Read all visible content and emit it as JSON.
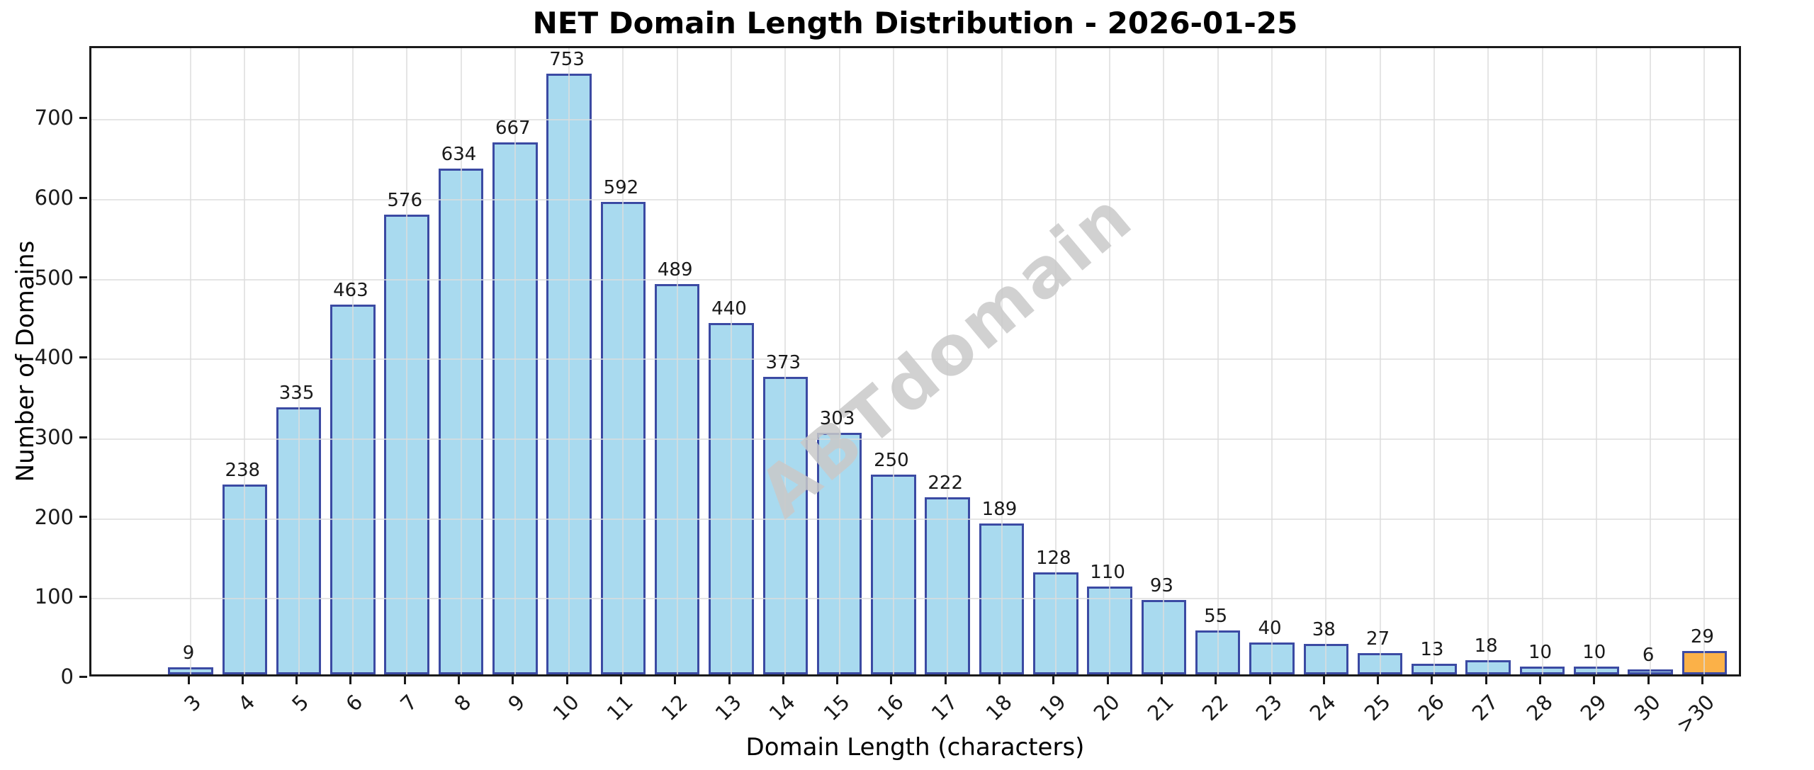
{
  "title": "NET Domain Length Distribution - 2026-01-25",
  "watermark": "ABTdomain",
  "chart_data": {
    "type": "bar",
    "title": "NET Domain Length Distribution - 2026-01-25",
    "xlabel": "Domain Length (characters)",
    "ylabel": "Number of Domains",
    "categories": [
      "3",
      "4",
      "5",
      "6",
      "7",
      "8",
      "9",
      "10",
      "11",
      "12",
      "13",
      "14",
      "15",
      "16",
      "17",
      "18",
      "19",
      "20",
      "21",
      "22",
      "23",
      "24",
      "25",
      "26",
      "27",
      "28",
      "29",
      "30",
      ">30"
    ],
    "values": [
      9,
      238,
      335,
      463,
      576,
      634,
      667,
      753,
      592,
      489,
      440,
      373,
      303,
      250,
      222,
      189,
      128,
      110,
      93,
      55,
      40,
      38,
      27,
      13,
      18,
      10,
      10,
      6,
      29
    ],
    "bar_fill_color": "#A9DAEF",
    "highlight_fill_color": "#FBB148",
    "highlight_index": 28,
    "bar_edge_color": "#3B4AA3",
    "ylim": [
      0,
      790
    ],
    "yticks": [
      0,
      100,
      200,
      300,
      400,
      500,
      600,
      700
    ],
    "grid": true,
    "grid_color": "#dcdcdc",
    "legend": "none",
    "value_labels": true,
    "watermark_text": "ABTdomain"
  }
}
